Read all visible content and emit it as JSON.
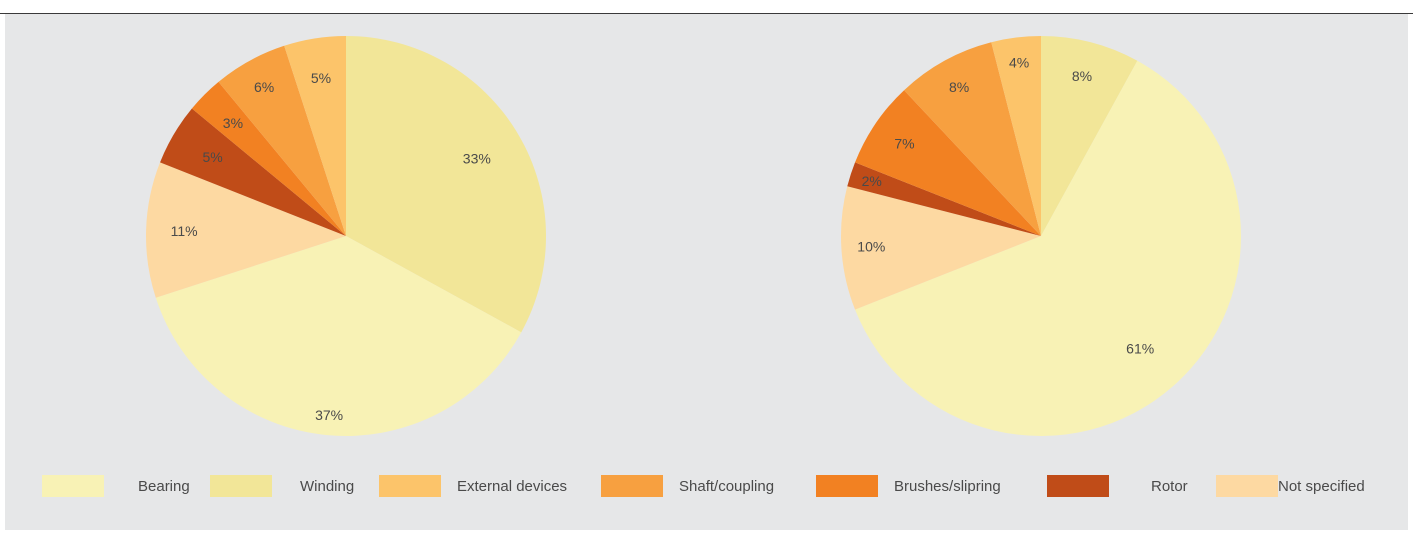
{
  "colors": {
    "Bearing": "#f8f2b5",
    "Winding": "#f2e698",
    "External devices": "#fcc46a",
    "Shaft/coupling": "#f7a040",
    "Brushes/slipring": "#f28122",
    "Rotor": "#c04c18",
    "Not specified": "#fdd9a2"
  },
  "legend": [
    {
      "label": "Bearing",
      "color": "#f8f2b5"
    },
    {
      "label": "Winding",
      "color": "#f2e698"
    },
    {
      "label": "External devices",
      "color": "#fcc46a"
    },
    {
      "label": "Shaft/coupling",
      "color": "#f7a040"
    },
    {
      "label": "Brushes/slipring",
      "color": "#f28122"
    },
    {
      "label": "Rotor",
      "color": "#c04c18"
    },
    {
      "label": "Not specified",
      "color": "#fdd9a2"
    }
  ],
  "chart_data": [
    {
      "type": "pie",
      "title": "",
      "legend_position": "bottom",
      "slices": [
        {
          "category": "Winding",
          "value": 33,
          "label": "33%"
        },
        {
          "category": "Bearing",
          "value": 37,
          "label": "37%"
        },
        {
          "category": "Not specified",
          "value": 11,
          "label": "11%"
        },
        {
          "category": "Rotor",
          "value": 5,
          "label": "5%"
        },
        {
          "category": "Brushes/slipring",
          "value": 3,
          "label": "3%"
        },
        {
          "category": "Shaft/coupling",
          "value": 6,
          "label": "6%"
        },
        {
          "category": "External devices",
          "value": 5,
          "label": "5%"
        }
      ]
    },
    {
      "type": "pie",
      "title": "",
      "legend_position": "bottom",
      "slices": [
        {
          "category": "Winding",
          "value": 8,
          "label": "8%"
        },
        {
          "category": "Bearing",
          "value": 61,
          "label": "61%"
        },
        {
          "category": "Not specified",
          "value": 10,
          "label": "10%"
        },
        {
          "category": "Rotor",
          "value": 2,
          "label": "2%"
        },
        {
          "category": "Brushes/slipring",
          "value": 7,
          "label": "7%"
        },
        {
          "category": "Shaft/coupling",
          "value": 8,
          "label": "8%"
        },
        {
          "category": "External devices",
          "value": 4,
          "label": "4%"
        }
      ]
    }
  ]
}
